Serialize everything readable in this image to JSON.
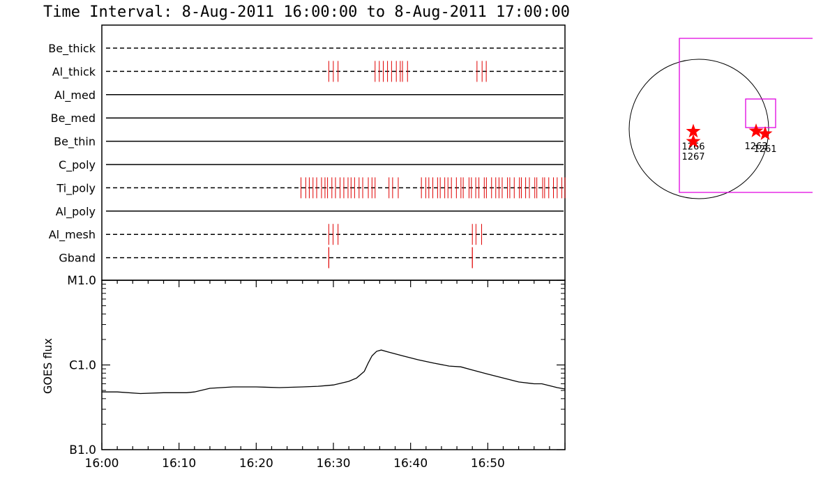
{
  "title": "Time Interval:  8-Aug-2011 16:00:00 to  8-Aug-2011 17:00:00",
  "colors": {
    "event": "#e00000",
    "frame": "#000000",
    "fov": "#e000e0",
    "star": "#ff0000"
  },
  "chart_data": [
    {
      "type": "event-timeline",
      "x_range": [
        "16:00",
        "17:00"
      ],
      "rows": [
        {
          "name": "Be_thick",
          "style": "dashed",
          "events": []
        },
        {
          "name": "Al_thick",
          "style": "dashed",
          "events": [
            [
              16.49,
              16.51
            ],
            [
              16.59,
              16.66
            ],
            [
              16.81,
              16.83
            ]
          ]
        },
        {
          "name": "Al_med",
          "style": "solid",
          "events": []
        },
        {
          "name": "Be_med",
          "style": "solid",
          "events": []
        },
        {
          "name": "Be_thin",
          "style": "solid",
          "events": []
        },
        {
          "name": "C_poly",
          "style": "solid",
          "events": []
        },
        {
          "name": "Ti_poly",
          "style": "dashed",
          "events": [
            [
              16.43,
              16.59
            ],
            [
              16.62,
              16.64
            ],
            [
              16.69,
              17.0
            ]
          ]
        },
        {
          "name": "Al_poly",
          "style": "solid",
          "events": []
        },
        {
          "name": "Al_mesh",
          "style": "dashed",
          "events": [
            [
              16.49,
              16.51
            ],
            [
              16.8,
              16.82
            ]
          ]
        },
        {
          "name": "Gband",
          "style": "dashed",
          "events": [
            [
              16.49,
              16.49
            ],
            [
              16.8,
              16.8
            ]
          ]
        }
      ]
    },
    {
      "type": "line",
      "ylabel": "GOES flux",
      "yscale": "log",
      "ytick_labels": [
        "B1.0",
        "C1.0",
        "M1.0"
      ],
      "xtick_labels": [
        "16:00",
        "16:10",
        "16:20",
        "16:30",
        "16:40",
        "16:50"
      ],
      "x_range_minutes": [
        0,
        60
      ],
      "series": [
        {
          "x": [
            0,
            2,
            5,
            8,
            11,
            12,
            14,
            17,
            20,
            23,
            26,
            28,
            29,
            30,
            31,
            32,
            33,
            34,
            34.5,
            35,
            35.6,
            36.2,
            37,
            39,
            41,
            43,
            45,
            46.5,
            48,
            50,
            52,
            54,
            56,
            57,
            58,
            59,
            60
          ],
          "y": [
            4.8e-07,
            4.8e-07,
            4.6e-07,
            4.7e-07,
            4.7e-07,
            4.8e-07,
            5.3e-07,
            5.5e-07,
            5.5e-07,
            5.4e-07,
            5.5e-07,
            5.6e-07,
            5.7e-07,
            5.8e-07,
            6.1e-07,
            6.4e-07,
            7e-07,
            8.4e-07,
            1.05e-06,
            1.28e-06,
            1.45e-06,
            1.5e-06,
            1.43e-06,
            1.28e-06,
            1.15e-06,
            1.05e-06,
            9.7e-07,
            9.5e-07,
            8.7e-07,
            7.8e-07,
            7e-07,
            6.3e-07,
            6e-07,
            6e-07,
            5.7e-07,
            5.4e-07,
            5.2e-07
          ]
        }
      ]
    }
  ],
  "locator": {
    "regions": [
      {
        "label": "1266",
        "x": -80,
        "y": 95
      },
      {
        "label": "1267",
        "x": -80,
        "y": 240
      },
      {
        "label": "1263",
        "x": 820,
        "y": 90
      },
      {
        "label": "1261",
        "x": 950,
        "y": 130
      }
    ]
  }
}
